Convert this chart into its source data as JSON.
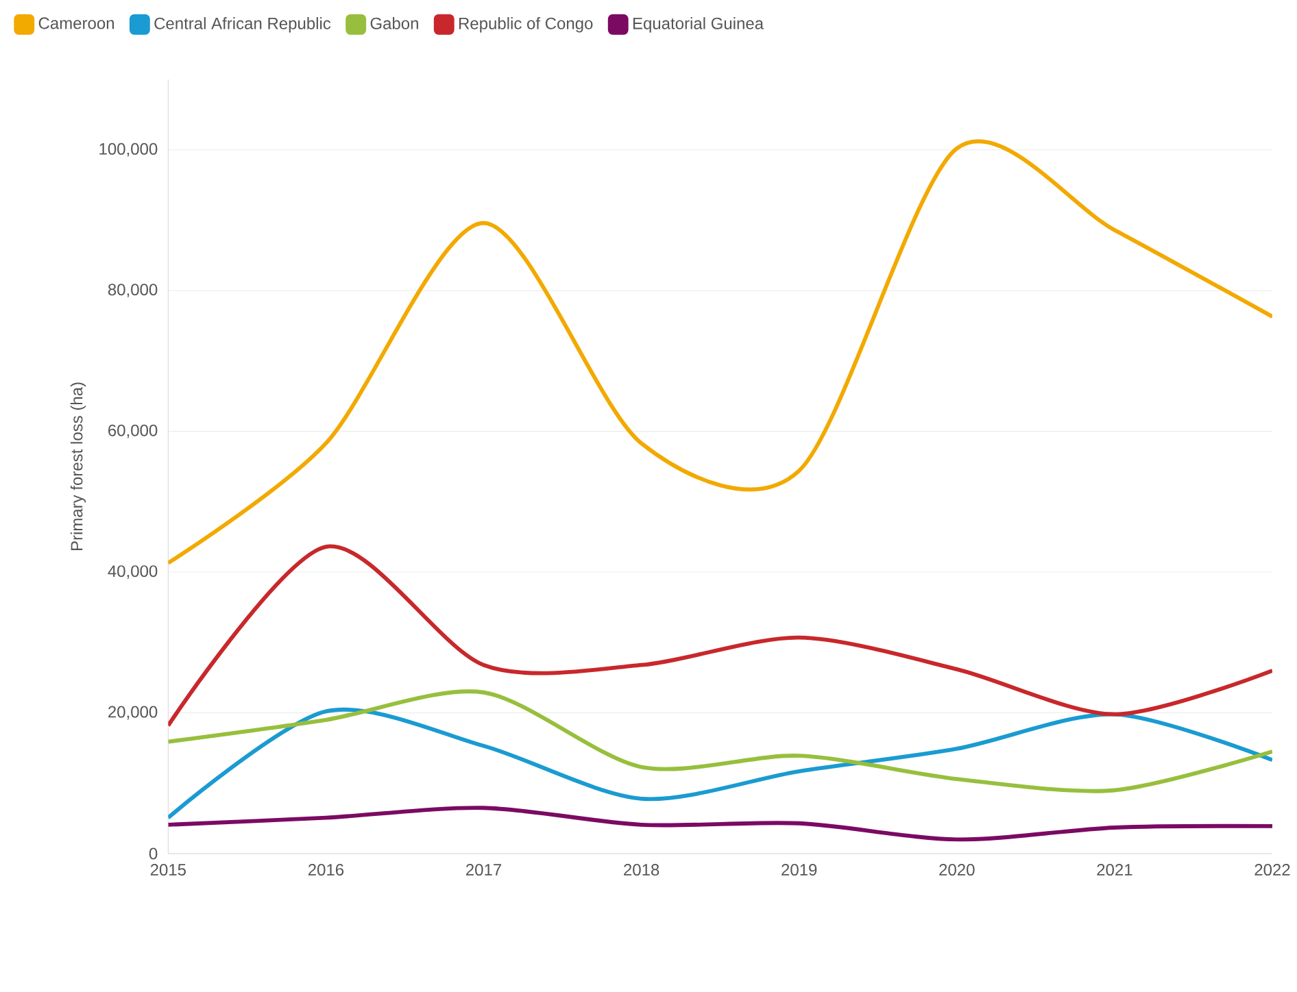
{
  "chart_data": {
    "type": "line",
    "ylabel": "Primary forest loss (ha)",
    "x": [
      2015,
      2016,
      2017,
      2018,
      2019,
      2020,
      2021,
      2022
    ],
    "series": [
      {
        "name": "Cameroon",
        "color": "#f2a900",
        "values": [
          41300,
          58300,
          89600,
          58300,
          54400,
          100200,
          88600,
          76300
        ]
      },
      {
        "name": "Central African Republic",
        "color": "#1a9bd1",
        "values": [
          5100,
          20200,
          15300,
          7800,
          11700,
          14900,
          19800,
          13300
        ]
      },
      {
        "name": "Gabon",
        "color": "#97bf3d",
        "values": [
          15900,
          19000,
          22900,
          12300,
          13900,
          10600,
          9000,
          14500
        ]
      },
      {
        "name": "Republic of Congo",
        "color": "#c8282b",
        "values": [
          18200,
          43600,
          26800,
          26800,
          30700,
          26200,
          19800,
          26000
        ]
      },
      {
        "name": "Equatorial Guinea",
        "color": "#7b0a63",
        "values": [
          4100,
          5100,
          6500,
          4100,
          4300,
          2000,
          3700,
          3900
        ]
      }
    ],
    "xlim": [
      2015,
      2022
    ],
    "ylim": [
      0,
      110000
    ],
    "xticks": [
      2015,
      2016,
      2017,
      2018,
      2019,
      2020,
      2021,
      2022
    ],
    "yticks": [
      0,
      {
        "value": 20000,
        "label": "20,000"
      },
      {
        "value": 40000,
        "label": "40,000"
      },
      {
        "value": 60000,
        "label": "60,000"
      },
      {
        "value": 80000,
        "label": "80,000"
      },
      {
        "value": 100000,
        "label": "100,000"
      }
    ],
    "grid": "y",
    "legend": "top left",
    "marker": "none",
    "line_style": "solid"
  }
}
